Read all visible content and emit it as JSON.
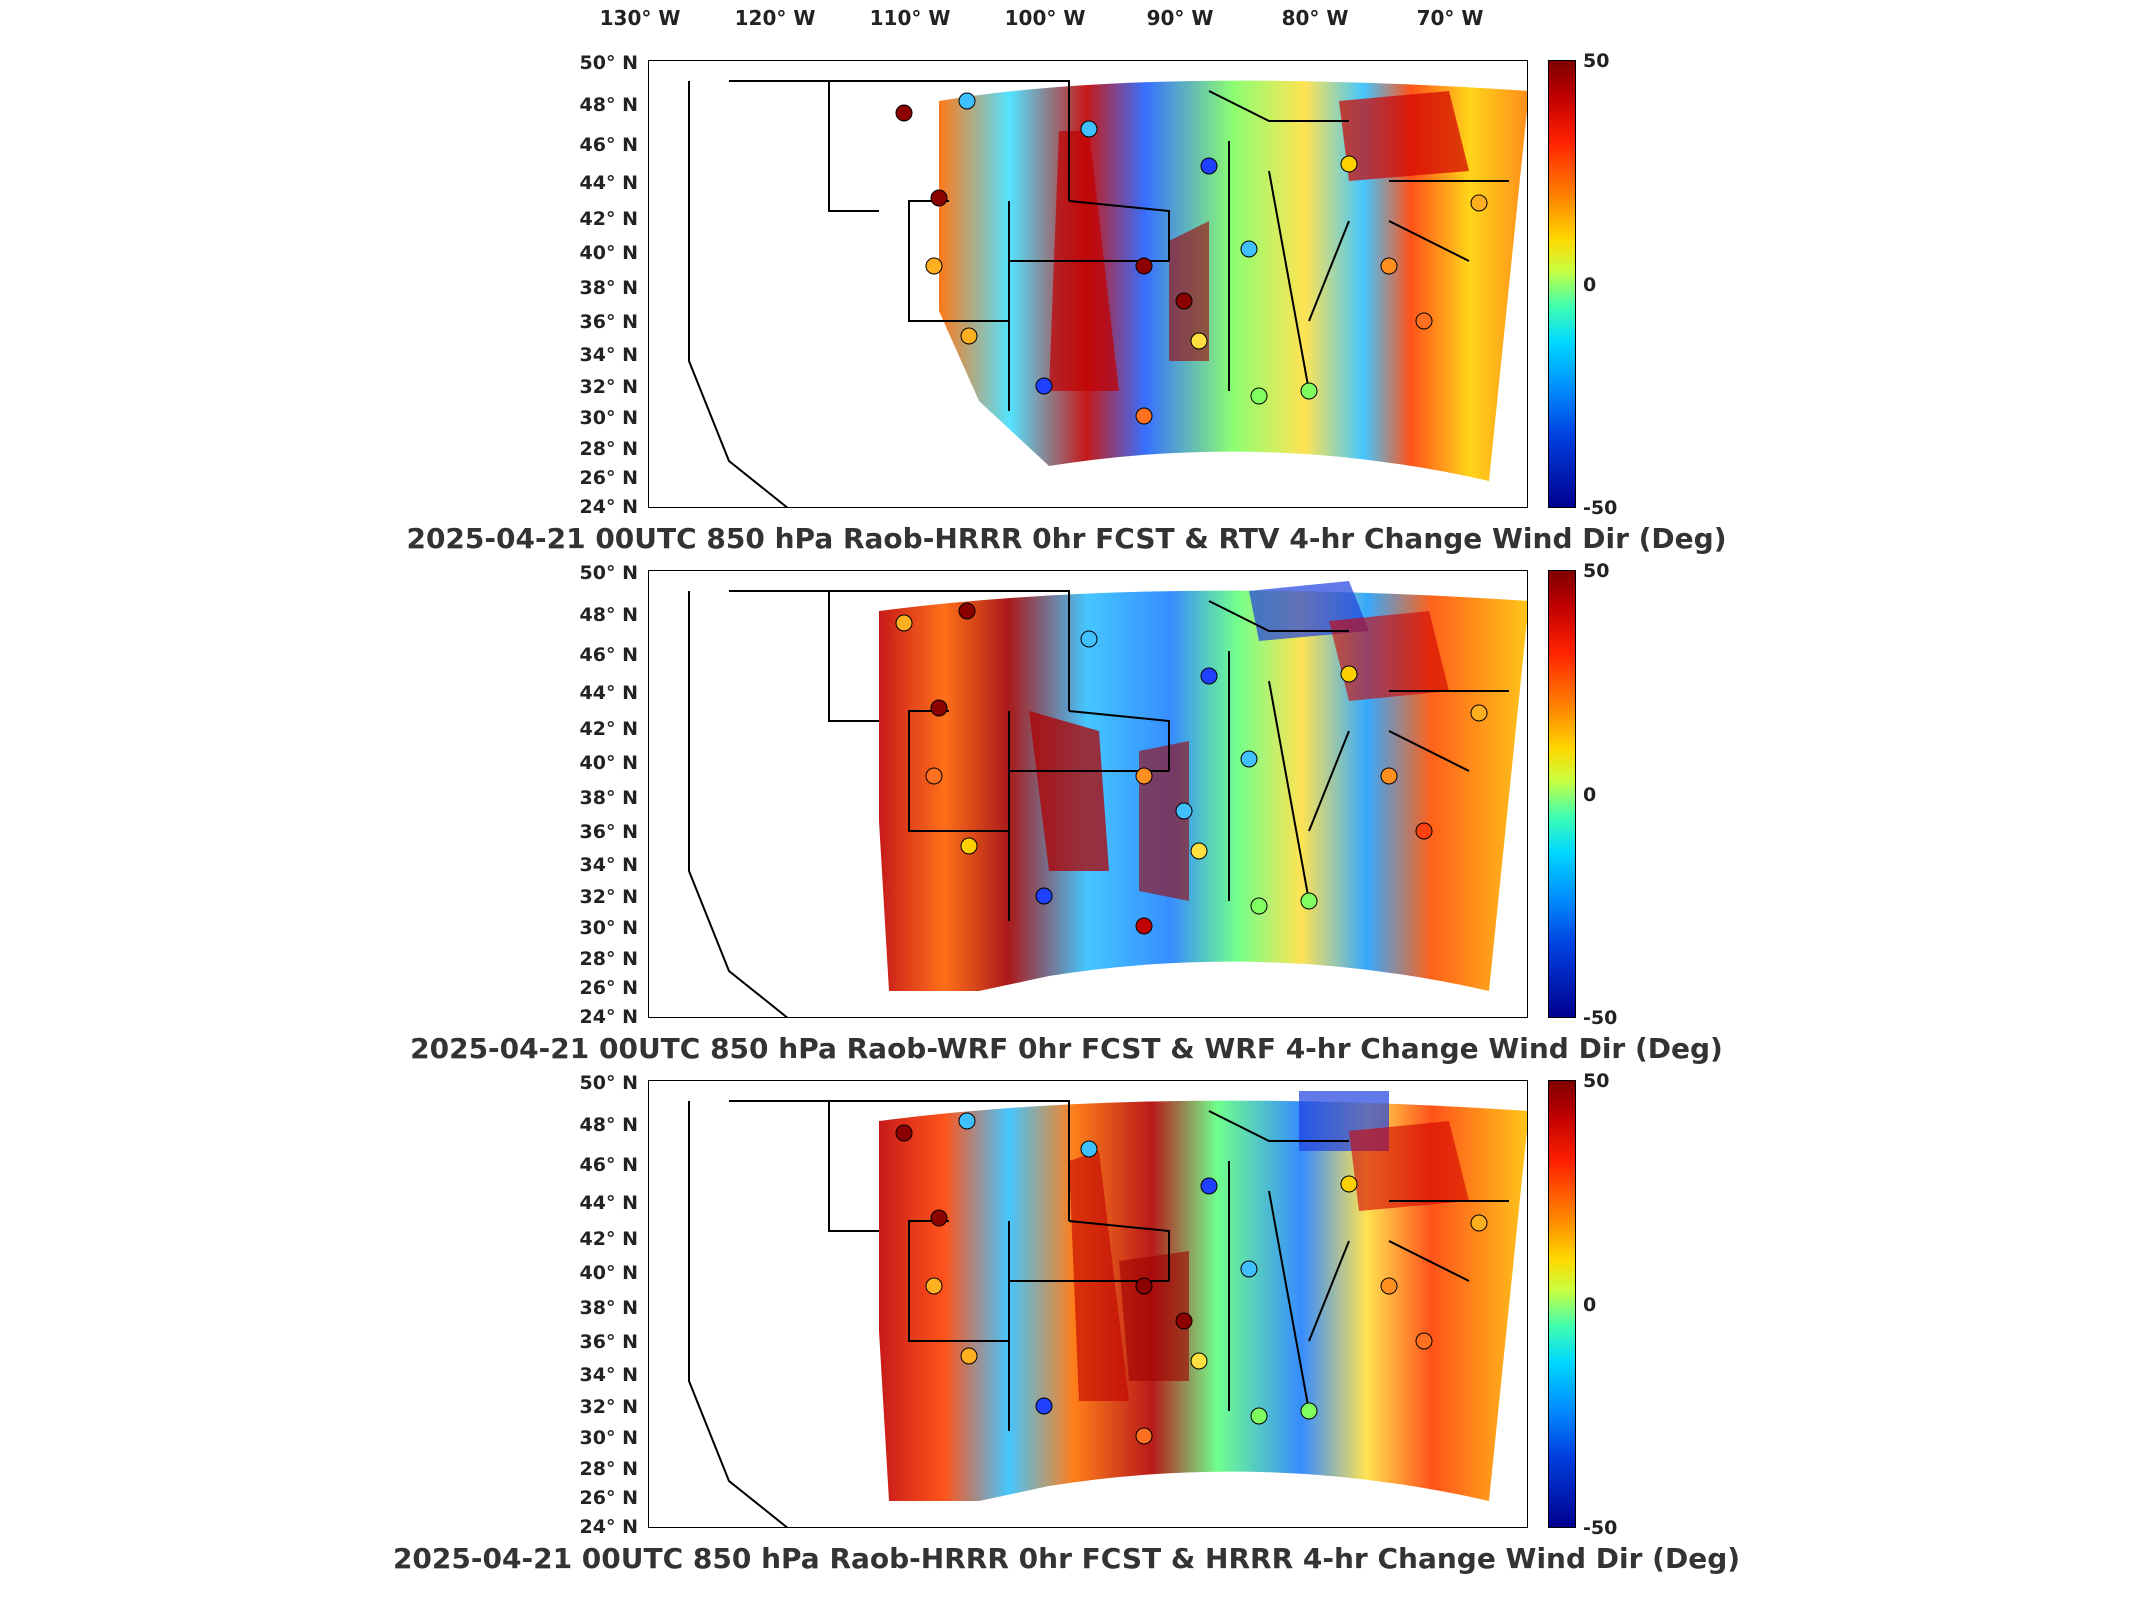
{
  "longitude_labels": [
    "130° W",
    "120° W",
    "110° W",
    "100° W",
    "90° W",
    "80° W",
    "70° W"
  ],
  "latitude_labels": [
    "50° N",
    "48° N",
    "46° N",
    "44° N",
    "42° N",
    "40° N",
    "38° N",
    "36° N",
    "34° N",
    "32° N",
    "30° N",
    "28° N",
    "26° N",
    "24° N"
  ],
  "colorbar": {
    "max_label": "50",
    "mid_label": "0",
    "min_label": "-50"
  },
  "panels": [
    {
      "title": "2025-04-21 00UTC 850 hPa Raob-HRRR 0hr FCST & RTV 4-hr Change Wind Dir (Deg)"
    },
    {
      "title": "2025-04-21 00UTC 850 hPa Raob-WRF 0hr FCST & WRF 4-hr Change Wind Dir (Deg)"
    },
    {
      "title": "2025-04-21 00UTC 850 hPa Raob-HRRR 0hr FCST & HRRR 4-hr Change Wind Dir (Deg)"
    }
  ],
  "colors": {
    "max": "#7f0000",
    "mid": "#80ff80",
    "min": "#00008f"
  }
}
